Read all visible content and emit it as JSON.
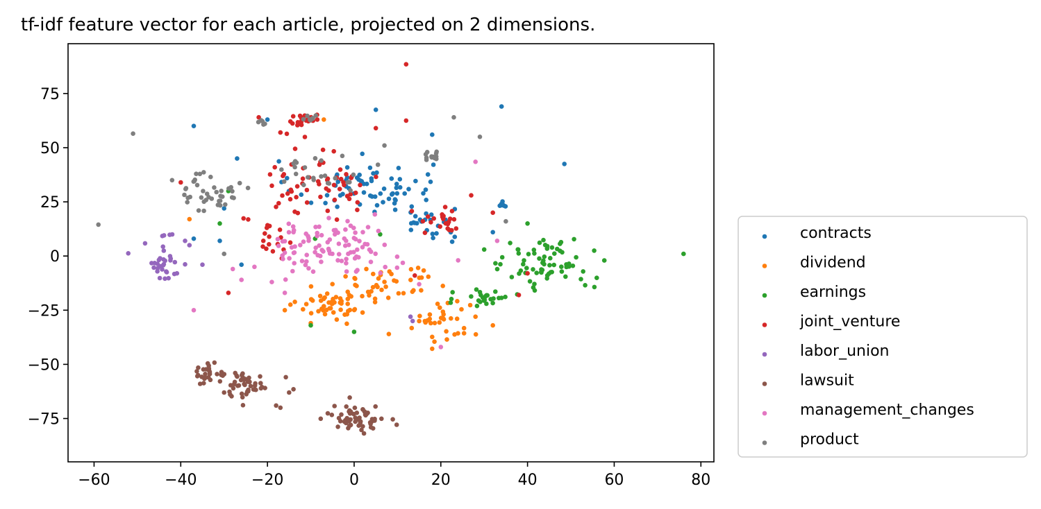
{
  "chart_data": {
    "type": "scatter",
    "title": "tf-idf feature vector for each article, projected on 2 dimensions.",
    "xlabel": "",
    "ylabel": "",
    "xlim": [
      -66,
      83
    ],
    "ylim": [
      -95,
      98
    ],
    "x_ticks": [
      "−60",
      "−40",
      "−20",
      "0",
      "20",
      "40",
      "60",
      "80"
    ],
    "x_tick_values": [
      -60,
      -40,
      -20,
      0,
      20,
      40,
      60,
      80
    ],
    "y_ticks": [
      "−75",
      "−50",
      "−25",
      "0",
      "25",
      "50",
      "75"
    ],
    "y_tick_values": [
      -75,
      -50,
      -25,
      0,
      25,
      50,
      75
    ],
    "grid": false,
    "legend_position": "outside-right-bottom",
    "series": [
      {
        "name": "contracts",
        "color": "#1f77b4",
        "clusters": [
          {
            "cx": 2,
            "cy": 32,
            "sx": 8,
            "sy": 6,
            "n": 70
          },
          {
            "cx": 18,
            "cy": 15,
            "sx": 4,
            "sy": 6,
            "n": 25
          },
          {
            "cx": 34,
            "cy": 24,
            "sx": 0.5,
            "sy": 0.6,
            "n": 7
          }
        ],
        "outliers": [
          [
            -37,
            60
          ],
          [
            34,
            69
          ],
          [
            48.5,
            42.5
          ],
          [
            5,
            67.5
          ],
          [
            -27,
            45
          ],
          [
            18,
            56
          ],
          [
            -26,
            -4
          ],
          [
            -31,
            7
          ],
          [
            -20,
            63
          ],
          [
            -37,
            8
          ],
          [
            32,
            11
          ],
          [
            -30,
            22
          ]
        ]
      },
      {
        "name": "dividend",
        "color": "#ff7f0e",
        "clusters": [
          {
            "cx": -5,
            "cy": -22,
            "sx": 4,
            "sy": 3.5,
            "n": 50
          },
          {
            "cx": 7,
            "cy": -12,
            "sx": 6,
            "sy": 5,
            "n": 40
          },
          {
            "cx": 21,
            "cy": -30,
            "sx": 4,
            "sy": 6,
            "n": 35
          }
        ],
        "outliers": [
          [
            -7,
            63
          ],
          [
            -38,
            17
          ],
          [
            8,
            -36
          ],
          [
            -10,
            -31
          ],
          [
            32,
            -32
          ],
          [
            -16,
            -25
          ],
          [
            28,
            -28
          ]
        ]
      },
      {
        "name": "earnings",
        "color": "#2ca02c",
        "clusters": [
          {
            "cx": 45,
            "cy": -4,
            "sx": 5,
            "sy": 6,
            "n": 70
          },
          {
            "cx": 30,
            "cy": -19,
            "sx": 3,
            "sy": 3,
            "n": 25
          }
        ],
        "outliers": [
          [
            76,
            1
          ],
          [
            -29,
            30
          ],
          [
            -31,
            15
          ],
          [
            -10,
            -32
          ],
          [
            0,
            -35
          ],
          [
            6,
            10
          ],
          [
            40,
            15
          ],
          [
            -9,
            8
          ],
          [
            36,
            6
          ],
          [
            30,
            3
          ]
        ]
      },
      {
        "name": "joint_venture",
        "color": "#d62728",
        "clusters": [
          {
            "cx": -11,
            "cy": 63,
            "sx": 2,
            "sy": 1.6,
            "n": 22
          },
          {
            "cx": -8,
            "cy": 34,
            "sx": 7,
            "sy": 8,
            "n": 60
          },
          {
            "cx": 21,
            "cy": 16,
            "sx": 3,
            "sy": 3,
            "n": 22
          },
          {
            "cx": -20,
            "cy": 6,
            "sx": 3,
            "sy": 6,
            "n": 18
          }
        ],
        "outliers": [
          [
            12,
            88.5
          ],
          [
            12,
            62.5
          ],
          [
            5,
            59
          ],
          [
            -40,
            34
          ],
          [
            -22,
            64
          ],
          [
            -17,
            57
          ],
          [
            -29,
            -17
          ],
          [
            27,
            28
          ],
          [
            32,
            20
          ],
          [
            40,
            -8
          ],
          [
            38,
            -18
          ],
          [
            14,
            -9
          ]
        ]
      },
      {
        "name": "labor_union",
        "color": "#9467bd",
        "clusters": [
          {
            "cx": -44,
            "cy": -3,
            "sx": 3,
            "sy": 4,
            "n": 30
          },
          {
            "cx": -43,
            "cy": 10,
            "sx": 1,
            "sy": 0.7,
            "n": 4
          }
        ],
        "outliers": [
          [
            13,
            -28
          ],
          [
            13.5,
            -30
          ],
          [
            -35,
            -4
          ],
          [
            -38,
            5
          ],
          [
            -39,
            7
          ]
        ]
      },
      {
        "name": "lawsuit",
        "color": "#8c564b",
        "clusters": [
          {
            "cx": 1,
            "cy": -75,
            "sx": 3,
            "sy": 3.2,
            "n": 60
          },
          {
            "cx": -25,
            "cy": -59,
            "sx": 3.2,
            "sy": 3,
            "n": 45
          },
          {
            "cx": -34,
            "cy": -54,
            "sx": 2,
            "sy": 2.5,
            "n": 25
          }
        ],
        "outliers": [
          [
            -14,
            -61.5
          ],
          [
            -15,
            -63
          ],
          [
            -18,
            -69
          ],
          [
            -30,
            -63
          ],
          [
            -17,
            -70
          ]
        ]
      },
      {
        "name": "management_changes",
        "color": "#e377c2",
        "clusters": [
          {
            "cx": -5,
            "cy": 4,
            "sx": 7,
            "sy": 6,
            "n": 100
          }
        ],
        "outliers": [
          [
            28,
            43.5
          ],
          [
            -37,
            -25
          ],
          [
            -23,
            -5
          ],
          [
            -19,
            -12
          ],
          [
            -28,
            -6
          ],
          [
            -16,
            -17
          ],
          [
            -26,
            -11
          ],
          [
            20,
            -42
          ],
          [
            33,
            7
          ],
          [
            15,
            -13
          ],
          [
            -14,
            11
          ],
          [
            24,
            -2
          ]
        ]
      },
      {
        "name": "product",
        "color": "#7f7f7f",
        "clusters": [
          {
            "cx": -33,
            "cy": 30,
            "sx": 3,
            "sy": 5,
            "n": 40
          },
          {
            "cx": 18,
            "cy": 46,
            "sx": 1.2,
            "sy": 1.2,
            "n": 14
          },
          {
            "cx": -8,
            "cy": 38,
            "sx": 6,
            "sy": 4,
            "n": 25
          },
          {
            "cx": -21,
            "cy": 62,
            "sx": 0.8,
            "sy": 0.8,
            "n": 5
          },
          {
            "cx": -10,
            "cy": 64,
            "sx": 1.2,
            "sy": 1,
            "n": 8
          }
        ],
        "outliers": [
          [
            -51,
            56.5
          ],
          [
            -59,
            14.5
          ],
          [
            23,
            64
          ],
          [
            29,
            55
          ],
          [
            7,
            51
          ],
          [
            -42,
            35
          ],
          [
            -30,
            1
          ],
          [
            35,
            16
          ]
        ]
      }
    ]
  }
}
